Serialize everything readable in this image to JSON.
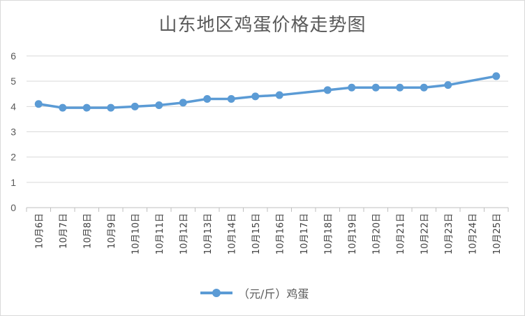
{
  "chart_data": {
    "type": "line",
    "title": "山东地区鸡蛋价格走势图",
    "categories": [
      "10月6日",
      "10月7日",
      "10月8日",
      "10月9日",
      "10月10日",
      "10月11日",
      "10月12日",
      "10月13日",
      "10月14日",
      "10月15日",
      "10月16日",
      "10月17日",
      "10月18日",
      "10月19日",
      "10月20日",
      "10月21日",
      "10月22日",
      "10月23日",
      "10月24日",
      "10月25日"
    ],
    "series": [
      {
        "name": "（元/斤）鸡蛋",
        "values": [
          4.1,
          3.95,
          3.95,
          3.95,
          4.0,
          4.05,
          4.15,
          4.3,
          4.3,
          4.4,
          4.45,
          null,
          4.65,
          4.75,
          4.75,
          4.75,
          4.75,
          4.85,
          null,
          5.2
        ],
        "color": "#5b9bd5"
      }
    ],
    "ylim": [
      0,
      6
    ],
    "yticks": [
      0,
      1,
      2,
      3,
      4,
      5,
      6
    ],
    "grid": true,
    "legend": "bottom",
    "xlabel": "",
    "ylabel": ""
  }
}
